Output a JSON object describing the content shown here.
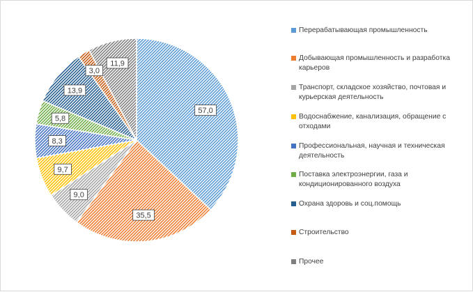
{
  "chart_data": {
    "type": "pie",
    "title": "",
    "series": [
      {
        "values": [
          57.0,
          35.5,
          9.0,
          9.7,
          8.3,
          5.8,
          13.9,
          3.0,
          11.9
        ],
        "data_labels": [
          "57,0",
          "35,5",
          "9,0",
          "9,7",
          "8,3",
          "5,8",
          "13,9",
          "3,0",
          "11,9"
        ]
      }
    ],
    "categories": [
      "Перерабатывающая промышленность",
      "Добывающая промышленность и разработка карьеров",
      "Транспорт, складское хозяйство, почтовая и курьерская деятельность",
      "Водоснабжение, канализация, обращение с отходами",
      "Профессиональная, научная и техническая деятельность",
      "Поставка электроэнергии, газа и кондиционированного воздуха",
      "Охрана здоровь и соц.помощь",
      "Строительство",
      "Прочее"
    ],
    "colors": [
      "#5b9bd5",
      "#ed7d31",
      "#a5a5a5",
      "#ffc000",
      "#4472c4",
      "#70ad47",
      "#255e91",
      "#c55a11",
      "#7f7f7f"
    ],
    "fill_pattern": "diagonal-hatch",
    "start_angle_deg": 0,
    "direction": "clockwise",
    "legend_position": "right",
    "data_label_style": "boxed"
  }
}
